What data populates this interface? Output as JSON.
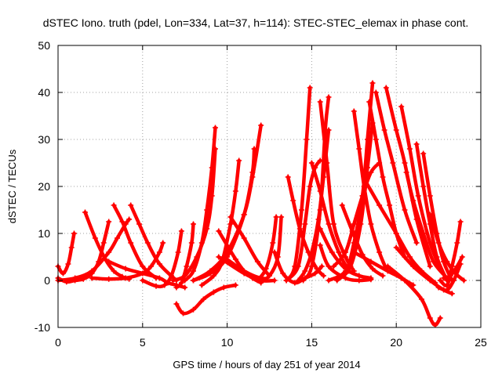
{
  "chart_data": {
    "type": "scatter",
    "title": "dSTEC Iono. truth (pdel, Lon=334, Lat=37, h=114): STEC-STEC_elemax in phase cont.",
    "xlabel": "GPS time / hours of day 251 of year 2014",
    "ylabel": "dSTEC  / TECUs",
    "xlim": [
      0,
      25
    ],
    "ylim": [
      -10,
      50
    ],
    "xticks": [
      0,
      5,
      10,
      15,
      20,
      25
    ],
    "yticks": [
      -10,
      0,
      10,
      20,
      30,
      40,
      50
    ],
    "grid": true,
    "marker": "plus",
    "color": "#ff0000",
    "series": [
      {
        "x": [
          0.0,
          0.3,
          0.6,
          0.8,
          0.95
        ],
        "y": [
          3.0,
          1.5,
          3.5,
          7.0,
          10.0
        ]
      },
      {
        "x": [
          0.0,
          0.5,
          1.0,
          1.5,
          2.0,
          2.4,
          2.7,
          3.0
        ],
        "y": [
          0.5,
          -0.3,
          0.0,
          0.3,
          1.5,
          4.0,
          8.0,
          12.5
        ]
      },
      {
        "x": [
          1.6,
          2.2,
          2.8,
          3.3,
          3.8,
          4.2
        ],
        "y": [
          14.5,
          9.0,
          4.5,
          2.0,
          0.8,
          0.3
        ]
      },
      {
        "x": [
          0.0,
          1.0,
          2.0,
          3.0,
          3.5,
          4.0,
          4.2
        ],
        "y": [
          0.0,
          0.5,
          2.0,
          6.0,
          9.0,
          12.0,
          13.0
        ]
      },
      {
        "x": [
          3.3,
          3.8,
          4.3,
          5.0,
          5.8
        ],
        "y": [
          16.0,
          12.5,
          8.0,
          3.0,
          0.5
        ]
      },
      {
        "x": [
          4.3,
          4.8,
          5.3,
          6.0,
          7.0
        ],
        "y": [
          16.0,
          12.0,
          8.0,
          3.5,
          0.0
        ]
      },
      {
        "x": [
          2.0,
          3.0,
          4.0,
          5.0,
          5.5,
          6.0,
          6.2
        ],
        "y": [
          0.5,
          0.3,
          0.5,
          1.5,
          3.0,
          6.0,
          8.0
        ]
      },
      {
        "x": [
          3.0,
          4.0,
          5.0,
          6.0,
          6.5,
          7.0,
          7.5
        ],
        "y": [
          4.0,
          2.5,
          1.5,
          0.5,
          -0.5,
          -1.0,
          -1.5
        ]
      },
      {
        "x": [
          5.0,
          5.8,
          6.3,
          6.7,
          7.1,
          7.3
        ],
        "y": [
          0.0,
          -1.2,
          -1.0,
          1.0,
          6.0,
          10.5
        ]
      },
      {
        "x": [
          7.0,
          7.3,
          7.6,
          7.9,
          8.0
        ],
        "y": [
          -1.5,
          -0.5,
          3.0,
          8.0,
          12.0
        ]
      },
      {
        "x": [
          7.0,
          7.4,
          8.0,
          8.6,
          9.2,
          9.8,
          10.5
        ],
        "y": [
          -5.0,
          -7.0,
          -6.2,
          -4.0,
          -2.5,
          -1.5,
          -1.0
        ]
      },
      {
        "x": [
          7.5,
          8.0,
          8.5,
          8.8,
          9.1,
          9.3
        ],
        "y": [
          0.0,
          2.0,
          8.0,
          15.0,
          24.0,
          32.5
        ]
      },
      {
        "x": [
          6.8,
          7.5,
          8.2,
          8.8,
          9.1,
          9.3
        ],
        "y": [
          0.0,
          1.0,
          5.0,
          11.0,
          18.0,
          28.0
        ]
      },
      {
        "x": [
          8.5,
          9.2,
          9.7,
          10.2,
          10.5,
          10.7
        ],
        "y": [
          -1.0,
          1.0,
          4.0,
          12.0,
          19.0,
          25.5
        ]
      },
      {
        "x": [
          8.0,
          9.0,
          10.0,
          11.0,
          11.5,
          12.0
        ],
        "y": [
          0.0,
          2.0,
          6.0,
          14.0,
          22.0,
          33.0
        ]
      },
      {
        "x": [
          8.0,
          9.0,
          10.0,
          11.0,
          11.5,
          11.6
        ],
        "y": [
          0.0,
          1.5,
          5.0,
          14.0,
          23.0,
          28.0
        ]
      },
      {
        "x": [
          9.5,
          10.5,
          11.0,
          11.5,
          12.0
        ],
        "y": [
          10.5,
          4.5,
          2.0,
          0.5,
          -0.5
        ]
      },
      {
        "x": [
          10.2,
          11.0,
          11.8,
          12.5
        ],
        "y": [
          13.5,
          9.0,
          4.0,
          1.0
        ]
      },
      {
        "x": [
          9.5,
          11.0,
          12.0,
          12.8
        ],
        "y": [
          5.0,
          1.5,
          0.0,
          0.0
        ]
      },
      {
        "x": [
          9.8,
          11.0,
          12.0,
          12.5,
          13.0,
          13.2
        ],
        "y": [
          5.0,
          2.0,
          0.5,
          1.0,
          5.0,
          13.5
        ]
      },
      {
        "x": [
          11.8,
          12.3,
          12.7,
          12.9
        ],
        "y": [
          0.0,
          2.5,
          8.0,
          13.5
        ]
      },
      {
        "x": [
          12.8,
          13.3,
          14.0,
          14.6,
          15.2,
          15.6
        ],
        "y": [
          6.0,
          1.5,
          -0.5,
          0.5,
          1.5,
          3.0
        ]
      },
      {
        "x": [
          13.5,
          14.0,
          14.4,
          14.7,
          14.9
        ],
        "y": [
          0.0,
          3.0,
          15.0,
          30.0,
          41.0
        ]
      },
      {
        "x": [
          13.5,
          14.2,
          14.6,
          14.9,
          15.2,
          15.5
        ],
        "y": [
          0.0,
          3.0,
          12.0,
          20.0,
          24.0,
          25.5
        ]
      },
      {
        "x": [
          13.6,
          13.9,
          14.3,
          14.8,
          15.3,
          15.7
        ],
        "y": [
          22.0,
          17.0,
          11.0,
          6.0,
          2.5,
          1.0
        ]
      },
      {
        "x": [
          14.2,
          14.6,
          15.0,
          15.4,
          15.7,
          16.0
        ],
        "y": [
          0.0,
          2.0,
          6.0,
          13.0,
          22.0,
          32.0
        ]
      },
      {
        "x": [
          14.5,
          15.0,
          15.5,
          15.8,
          16.0
        ],
        "y": [
          0.0,
          3.0,
          15.0,
          32.0,
          39.0
        ]
      },
      {
        "x": [
          15.5,
          15.9,
          16.3,
          17.0,
          17.5
        ],
        "y": [
          38.0,
          25.0,
          12.0,
          5.0,
          2.0
        ]
      },
      {
        "x": [
          15.0,
          15.5,
          16.0,
          16.6,
          17.2
        ],
        "y": [
          25.0,
          19.0,
          12.0,
          6.0,
          2.0
        ]
      },
      {
        "x": [
          15.5,
          16.2,
          17.0,
          17.8,
          18.5
        ],
        "y": [
          11.0,
          6.0,
          2.5,
          1.0,
          0.5
        ]
      },
      {
        "x": [
          15.5,
          16.0,
          17.0,
          17.8,
          18.5
        ],
        "y": [
          7.5,
          3.0,
          0.5,
          0.0,
          0.2
        ]
      },
      {
        "x": [
          16.0,
          17.0,
          17.5,
          18.0,
          18.3,
          18.6
        ],
        "y": [
          0.0,
          2.0,
          8.0,
          18.0,
          30.0,
          42.0
        ]
      },
      {
        "x": [
          16.5,
          17.3,
          17.9,
          18.3,
          18.6
        ],
        "y": [
          0.0,
          3.0,
          12.0,
          24.0,
          33.5
        ]
      },
      {
        "x": [
          16.3,
          17.0,
          17.5,
          18.0,
          18.5,
          19.0
        ],
        "y": [
          3.0,
          6.0,
          12.0,
          18.0,
          23.0,
          25.0
        ]
      },
      {
        "x": [
          16.8,
          17.4,
          18.0,
          18.6,
          19.2
        ],
        "y": [
          16.0,
          10.5,
          5.5,
          2.5,
          1.0
        ]
      },
      {
        "x": [
          17.5,
          17.8,
          18.1,
          18.5,
          19.0,
          19.4
        ],
        "y": [
          36.0,
          28.0,
          20.0,
          12.0,
          6.0,
          2.5
        ]
      },
      {
        "x": [
          18.4,
          18.8,
          19.2,
          19.6,
          20.0,
          20.5
        ],
        "y": [
          38.0,
          30.0,
          22.0,
          16.0,
          10.0,
          5.0
        ]
      },
      {
        "x": [
          18.8,
          19.3,
          19.8,
          20.5,
          21.2
        ],
        "y": [
          40.0,
          32.0,
          25.0,
          15.0,
          8.0
        ]
      },
      {
        "x": [
          19.4,
          20.0,
          20.5,
          21.2,
          22.0
        ],
        "y": [
          41.0,
          32.0,
          25.0,
          13.0,
          3.0
        ]
      },
      {
        "x": [
          18.2,
          19.0,
          20.0,
          20.8,
          21.5,
          22.3
        ],
        "y": [
          21.0,
          16.0,
          10.0,
          5.0,
          2.0,
          -0.5
        ]
      },
      {
        "x": [
          17.5,
          18.5,
          19.5,
          20.3,
          21.0
        ],
        "y": [
          6.0,
          4.0,
          2.0,
          0.5,
          -1.0
        ]
      },
      {
        "x": [
          20.3,
          20.8,
          21.3,
          22.0,
          22.6
        ],
        "y": [
          37.0,
          28.0,
          18.0,
          8.0,
          2.5
        ]
      },
      {
        "x": [
          20.6,
          21.0,
          21.6,
          22.2,
          23.0
        ],
        "y": [
          23.0,
          17.0,
          10.0,
          4.0,
          0.5
        ]
      },
      {
        "x": [
          21.2,
          21.6,
          22.0,
          22.4,
          23.0
        ],
        "y": [
          29.0,
          20.0,
          12.0,
          5.0,
          0.0
        ]
      },
      {
        "x": [
          21.6,
          22.0,
          22.4,
          22.8,
          23.3
        ],
        "y": [
          27.0,
          18.0,
          10.0,
          4.0,
          0.0
        ]
      },
      {
        "x": [
          22.0,
          22.5,
          23.0,
          23.5,
          24.0
        ],
        "y": [
          14.0,
          8.0,
          4.0,
          1.5,
          0.0
        ]
      },
      {
        "x": [
          19.5,
          20.5,
          21.5,
          22.0,
          22.3,
          22.6
        ],
        "y": [
          3.0,
          0.0,
          -4.0,
          -8.0,
          -9.5,
          -8.0
        ]
      },
      {
        "x": [
          20.0,
          21.0,
          22.0,
          22.8,
          23.3
        ],
        "y": [
          7.0,
          3.0,
          0.0,
          -2.0,
          -2.8
        ]
      },
      {
        "x": [
          22.5,
          23.0,
          23.4,
          23.8
        ],
        "y": [
          -1.5,
          -2.0,
          0.0,
          3.5
        ]
      },
      {
        "x": [
          22.6,
          23.0,
          23.3,
          23.6,
          23.8
        ],
        "y": [
          0.0,
          -1.0,
          3.0,
          8.0,
          12.5
        ]
      },
      {
        "x": [
          22.8,
          23.2,
          23.6,
          23.9
        ],
        "y": [
          0.5,
          1.0,
          3.0,
          5.0
        ]
      }
    ]
  }
}
